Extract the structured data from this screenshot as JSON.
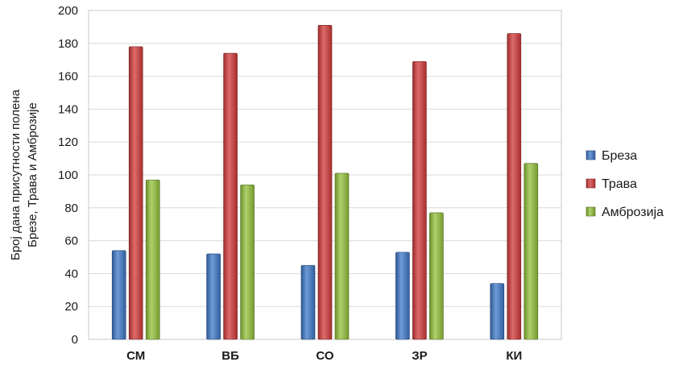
{
  "chart_data": {
    "type": "bar",
    "ylabel_line1": "Број дана присутности полена",
    "ylabel_line2": "Брезе, Трава и Амброзије",
    "categories": [
      "СМ",
      "ВБ",
      "СО",
      "ЗР",
      "КИ"
    ],
    "ylim": [
      0,
      200
    ],
    "yticks": [
      "0",
      "20",
      "40",
      "60",
      "80",
      "100",
      "120",
      "140",
      "160",
      "180",
      "200"
    ],
    "grid": true,
    "legend_position": "right",
    "series": [
      {
        "name": "Бреза",
        "color": "#3d78c8",
        "values": [
          54,
          52,
          45,
          53,
          34
        ]
      },
      {
        "name": "Трава",
        "color": "#d23a3a",
        "values": [
          178,
          174,
          191,
          169,
          186
        ]
      },
      {
        "name": "Амброзија",
        "color": "#93c13a",
        "values": [
          97,
          94,
          101,
          77,
          107
        ]
      }
    ]
  }
}
